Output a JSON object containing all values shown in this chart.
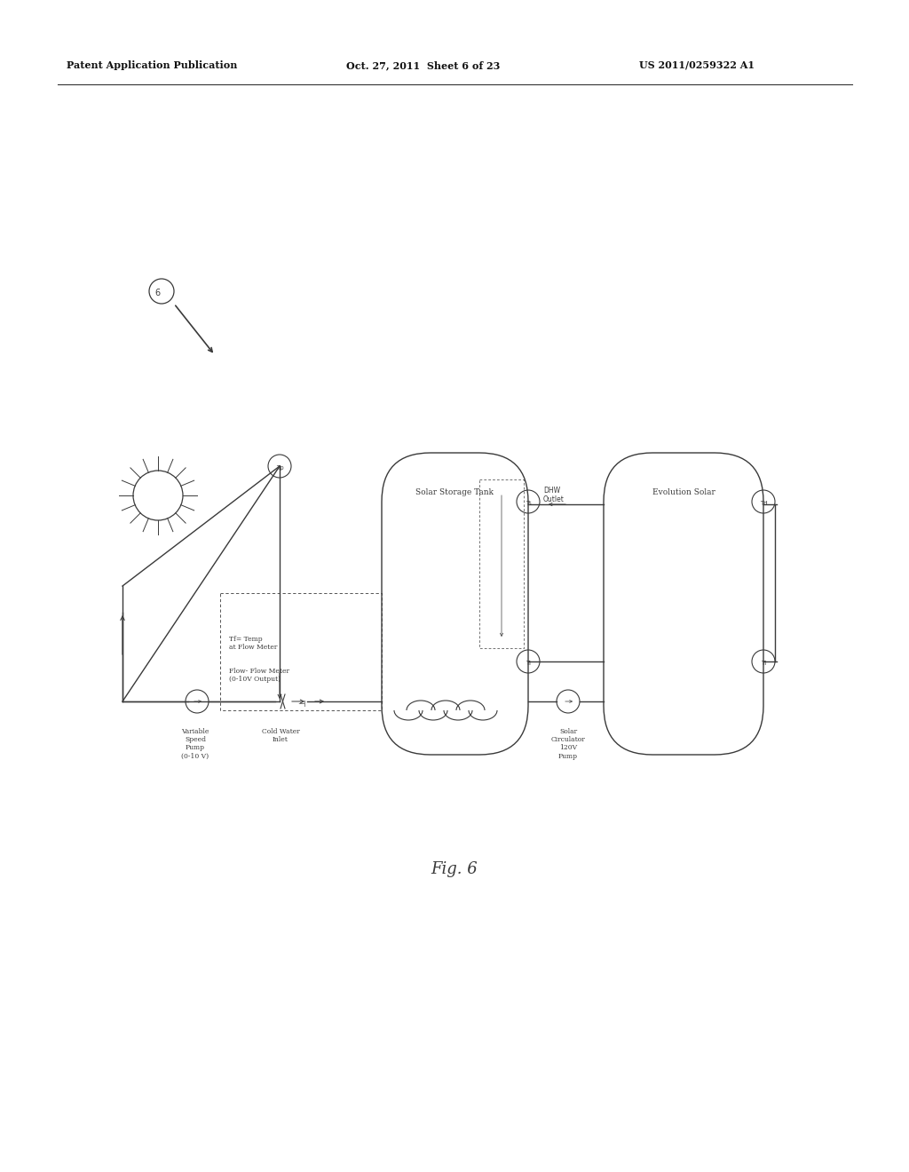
{
  "bg_color": "#ffffff",
  "header_left": "Patent Application Publication",
  "header_center": "Oct. 27, 2011  Sheet 6 of 23",
  "header_right": "US 2011/0259322 A1",
  "figure_label": "Fig. 6",
  "title": "Solar Storage Tank",
  "title2": "Evolution Solar",
  "label_dhw": "DHW\nOutlet",
  "label_tf": "Tf= Temp\nat Flow Meter",
  "label_flow": "Flow- Flow Meter\n(0-10V Output)",
  "label_vsp": "Variable\nSpeed\nPump\n(0-10 V)",
  "label_cwi": "Cold Water\nInlet",
  "label_solar_circ": "Solar\nCirculator\n120V\nPump"
}
